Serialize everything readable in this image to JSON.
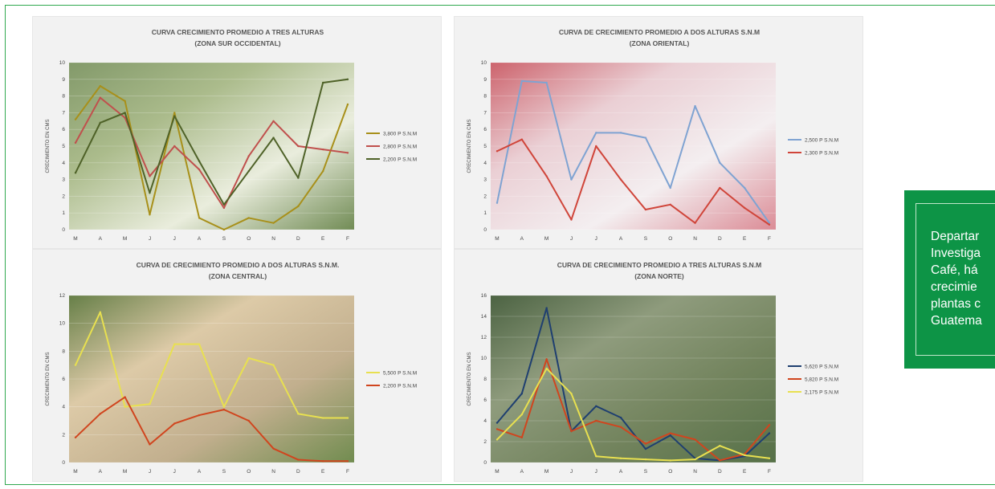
{
  "side_text": "Departar\nInvestiga\nCafé, há\ncrecimie\nplantas c\nGuatema",
  "chart_data": [
    {
      "type": "line",
      "title": "CURVA CRECIMIENTO  PROMEDIO A TRES ALTURAS",
      "subtitle": "(ZONA SUR OCCIDENTAL)",
      "ylabel": "CRECIMIENTO EN CMS",
      "categories": [
        "M",
        "A",
        "M",
        "J",
        "J",
        "A",
        "S",
        "O",
        "N",
        "D",
        "E",
        "F"
      ],
      "ylim": [
        0,
        10
      ],
      "yticks": [
        "0",
        "1",
        "2",
        "3",
        "4",
        "5",
        "6",
        "7",
        "8",
        "9",
        "10"
      ],
      "series": [
        {
          "name": "3,800 P S.N.M",
          "color": "#a8901a",
          "values": [
            6.6,
            8.6,
            7.7,
            0.9,
            7.0,
            0.7,
            0.0,
            0.7,
            0.4,
            1.4,
            3.5,
            7.5
          ]
        },
        {
          "name": "2,800 P S.N.M",
          "color": "#c0504d",
          "values": [
            5.2,
            7.9,
            6.7,
            3.2,
            5.0,
            3.6,
            1.3,
            4.4,
            6.5,
            5.0,
            4.8,
            4.6
          ]
        },
        {
          "name": "2,200 P S.N.M",
          "color": "#4f6228",
          "values": [
            3.4,
            6.4,
            7.0,
            2.2,
            6.8,
            4.1,
            1.5,
            3.5,
            5.5,
            3.1,
            8.8,
            9.0
          ]
        }
      ]
    },
    {
      "type": "line",
      "title": "CURVA DE CRECIMIENTO  PROMEDIO A DOS ALTURAS S.N.M",
      "subtitle": "(ZONA ORIENTAL)",
      "ylabel": "CRECIMIENTO EN CMS",
      "categories": [
        "M",
        "A",
        "M",
        "J",
        "J",
        "A",
        "S",
        "O",
        "N",
        "D",
        "E",
        "F"
      ],
      "ylim": [
        0,
        10
      ],
      "yticks": [
        "0",
        "1",
        "2",
        "3",
        "4",
        "5",
        "6",
        "7",
        "8",
        "9",
        "10"
      ],
      "series": [
        {
          "name": "2,500 P S.N.M",
          "color": "#7fa3d2",
          "values": [
            1.6,
            8.9,
            8.8,
            3.0,
            5.8,
            5.8,
            5.5,
            2.5,
            7.4,
            4.0,
            2.5,
            0.4
          ]
        },
        {
          "name": "2,300 P S.N.M",
          "color": "#d0453a",
          "values": [
            4.7,
            5.4,
            3.2,
            0.6,
            5.0,
            3.0,
            1.2,
            1.5,
            0.4,
            2.5,
            1.3,
            0.3
          ]
        }
      ]
    },
    {
      "type": "line",
      "title": "CURVA DE CRECIMIENTO  PROMEDIO A DOS ALTURAS  S.N.M.",
      "subtitle": "(ZONA CENTRAL)",
      "ylabel": "CRECIMIENTO EN CMS",
      "categories": [
        "M",
        "A",
        "M",
        "J",
        "J",
        "A",
        "S",
        "O",
        "N",
        "D",
        "E",
        "F"
      ],
      "ylim": [
        0,
        12
      ],
      "yticks": [
        "0",
        "2",
        "4",
        "6",
        "8",
        "10",
        "12"
      ],
      "series": [
        {
          "name": "5,500 P S.N.M",
          "color": "#e8e050",
          "values": [
            7.0,
            10.8,
            4.0,
            4.2,
            8.5,
            8.5,
            4.0,
            7.5,
            7.0,
            3.5,
            3.2,
            3.2
          ]
        },
        {
          "name": "2,200 P S.N.M",
          "color": "#d0451e",
          "values": [
            1.8,
            3.5,
            4.7,
            1.3,
            2.8,
            3.4,
            3.8,
            3.0,
            1.0,
            0.2,
            0.1,
            0.1
          ]
        }
      ]
    },
    {
      "type": "line",
      "title": "CURVA DE CRECIMIENTO  PROMEDIO A TRES ALTURAS S.N.M",
      "subtitle": "(ZONA NORTE)",
      "ylabel": "CRECIMIENTO EN CMS",
      "categories": [
        "M",
        "A",
        "M",
        "J",
        "J",
        "A",
        "S",
        "O",
        "N",
        "D",
        "E",
        "F"
      ],
      "ylim": [
        0,
        16
      ],
      "yticks": [
        "0",
        "2",
        "4",
        "6",
        "8",
        "10",
        "12",
        "14",
        "16"
      ],
      "series": [
        {
          "name": "5,620 P S.N.M",
          "color": "#1f3f70",
          "values": [
            3.8,
            6.6,
            14.8,
            3.0,
            5.4,
            4.3,
            1.3,
            2.6,
            0.4,
            0.2,
            0.6,
            2.8
          ]
        },
        {
          "name": "5,820 P S.N.M",
          "color": "#d0451e",
          "values": [
            3.2,
            2.4,
            9.9,
            3.0,
            4.0,
            3.4,
            1.8,
            2.8,
            2.2,
            0.2,
            0.8,
            3.6
          ]
        },
        {
          "name": "2,175 P S.N.M",
          "color": "#e8e050",
          "values": [
            2.2,
            4.6,
            9.0,
            6.6,
            0.6,
            0.4,
            0.3,
            0.2,
            0.3,
            1.6,
            0.7,
            0.4
          ]
        }
      ]
    }
  ]
}
